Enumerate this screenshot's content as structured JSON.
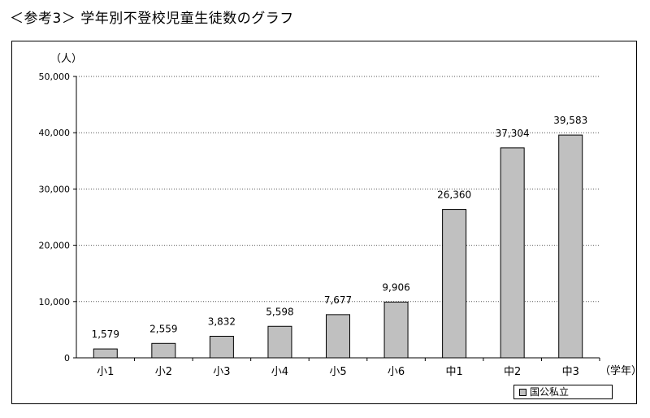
{
  "header": {
    "title": "＜参考3＞ 学年別不登校児童生徒数のグラフ"
  },
  "chart_data": {
    "type": "bar",
    "title": "",
    "unit_label": "（人）",
    "xlabel": "（学年）",
    "categories": [
      "小1",
      "小2",
      "小3",
      "小4",
      "小5",
      "小6",
      "中1",
      "中2",
      "中3"
    ],
    "series": [
      {
        "name": "国公私立",
        "values": [
          1579,
          2559,
          3832,
          5598,
          7677,
          9906,
          26360,
          37304,
          39583
        ],
        "labels": [
          "1,579",
          "2,559",
          "3,832",
          "5,598",
          "7,677",
          "9,906",
          "26,360",
          "37,304",
          "39,583"
        ],
        "color": "#c0c0c0"
      }
    ],
    "ylim": [
      0,
      50000
    ],
    "yticks": [
      0,
      10000,
      20000,
      30000,
      40000,
      50000
    ],
    "ytick_labels": [
      "0",
      "10,000",
      "20,000",
      "30,000",
      "40,000",
      "50,000"
    ],
    "grid": true,
    "legend_position": "bottom-right"
  }
}
